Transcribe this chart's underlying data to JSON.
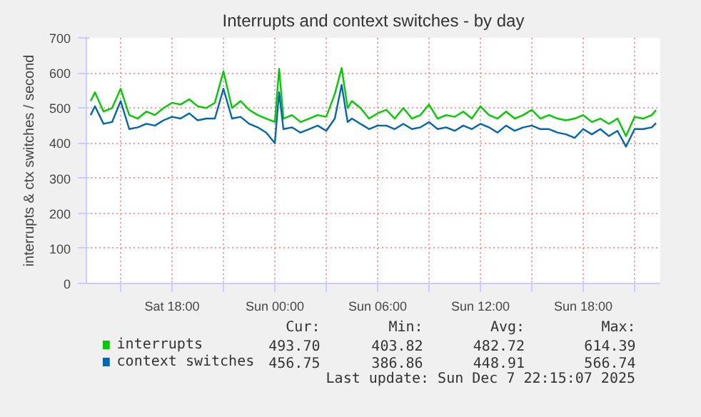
{
  "chart_data": {
    "type": "line",
    "title": "Interrupts and context switches - by day",
    "ylabel": "interrupts & ctx switches / second",
    "x": [
      "2025-12-06T13:15",
      "2025-12-06T13:30",
      "2025-12-06T14:00",
      "2025-12-06T14:30",
      "2025-12-06T15:00",
      "2025-12-06T15:30",
      "2025-12-06T16:00",
      "2025-12-06T16:30",
      "2025-12-06T17:00",
      "2025-12-06T17:30",
      "2025-12-06T18:00",
      "2025-12-06T18:30",
      "2025-12-06T19:00",
      "2025-12-06T19:30",
      "2025-12-06T20:00",
      "2025-12-06T20:30",
      "2025-12-06T21:00",
      "2025-12-06T21:30",
      "2025-12-06T22:00",
      "2025-12-06T22:30",
      "2025-12-06T23:00",
      "2025-12-06T23:30",
      "2025-12-07T00:00",
      "2025-12-07T00:15",
      "2025-12-07T00:30",
      "2025-12-07T01:00",
      "2025-12-07T01:30",
      "2025-12-07T02:00",
      "2025-12-07T02:30",
      "2025-12-07T03:00",
      "2025-12-07T03:30",
      "2025-12-07T03:54",
      "2025-12-07T04:15",
      "2025-12-07T04:30",
      "2025-12-07T05:00",
      "2025-12-07T05:30",
      "2025-12-07T06:00",
      "2025-12-07T06:30",
      "2025-12-07T07:00",
      "2025-12-07T07:30",
      "2025-12-07T08:00",
      "2025-12-07T08:30",
      "2025-12-07T09:00",
      "2025-12-07T09:30",
      "2025-12-07T10:00",
      "2025-12-07T10:30",
      "2025-12-07T11:00",
      "2025-12-07T11:30",
      "2025-12-07T12:00",
      "2025-12-07T12:30",
      "2025-12-07T13:00",
      "2025-12-07T13:30",
      "2025-12-07T14:00",
      "2025-12-07T14:30",
      "2025-12-07T15:00",
      "2025-12-07T15:30",
      "2025-12-07T16:00",
      "2025-12-07T16:30",
      "2025-12-07T17:00",
      "2025-12-07T17:30",
      "2025-12-07T18:00",
      "2025-12-07T18:30",
      "2025-12-07T19:00",
      "2025-12-07T19:30",
      "2025-12-07T20:00",
      "2025-12-07T20:30",
      "2025-12-07T21:00",
      "2025-12-07T21:30",
      "2025-12-07T22:00",
      "2025-12-07T22:15"
    ],
    "series": [
      {
        "name": "interrupts",
        "color": "#00cc00",
        "values": [
          520,
          545,
          490,
          500,
          555,
          480,
          470,
          490,
          480,
          500,
          515,
          510,
          525,
          505,
          500,
          515,
          605,
          500,
          520,
          495,
          480,
          470,
          460,
          612,
          470,
          480,
          460,
          470,
          480,
          475,
          540,
          614,
          500,
          520,
          500,
          470,
          485,
          495,
          470,
          500,
          470,
          480,
          510,
          470,
          480,
          475,
          490,
          470,
          505,
          480,
          470,
          490,
          470,
          480,
          495,
          470,
          480,
          470,
          465,
          470,
          480,
          460,
          470,
          455,
          470,
          420,
          475,
          470,
          480,
          494
        ]
      },
      {
        "name": "context switches",
        "color": "#0066b3",
        "values": [
          480,
          505,
          455,
          460,
          520,
          440,
          445,
          455,
          450,
          465,
          475,
          470,
          485,
          465,
          470,
          470,
          555,
          470,
          475,
          455,
          445,
          430,
          400,
          545,
          440,
          445,
          430,
          440,
          450,
          435,
          470,
          566,
          460,
          470,
          455,
          440,
          450,
          450,
          440,
          455,
          440,
          445,
          460,
          440,
          445,
          435,
          450,
          440,
          455,
          445,
          430,
          450,
          435,
          445,
          450,
          440,
          440,
          430,
          425,
          415,
          440,
          425,
          440,
          420,
          435,
          390,
          440,
          440,
          445,
          457
        ]
      }
    ],
    "xlim": [
      "2025-12-06T13:00",
      "2025-12-07T22:30"
    ],
    "xticks": [
      {
        "value": "2025-12-06T15:00",
        "label": null
      },
      {
        "value": "2025-12-06T18:00",
        "label": "Sat 18:00"
      },
      {
        "value": "2025-12-06T21:00",
        "label": null
      },
      {
        "value": "2025-12-07T00:00",
        "label": "Sun 00:00"
      },
      {
        "value": "2025-12-07T03:00",
        "label": null
      },
      {
        "value": "2025-12-07T06:00",
        "label": "Sun 06:00"
      },
      {
        "value": "2025-12-07T09:00",
        "label": null
      },
      {
        "value": "2025-12-07T12:00",
        "label": "Sun 12:00"
      },
      {
        "value": "2025-12-07T15:00",
        "label": null
      },
      {
        "value": "2025-12-07T18:00",
        "label": "Sun 18:00"
      },
      {
        "value": "2025-12-07T21:00",
        "label": null
      }
    ],
    "ylim": [
      0,
      700
    ],
    "yticks": [
      0,
      100,
      200,
      300,
      400,
      500,
      600,
      700
    ],
    "grid": true,
    "legend": "bottom left",
    "line_style": "solid",
    "marker": "none",
    "annotations": [
      "Cur:",
      "Min:",
      "Avg:",
      "Max:",
      "493.70",
      "403.82",
      "482.72",
      "614.39",
      "456.75",
      "386.86",
      "448.91",
      "566.74",
      "Last update: Sun Dec  7 22:15:07 2025"
    ]
  }
}
